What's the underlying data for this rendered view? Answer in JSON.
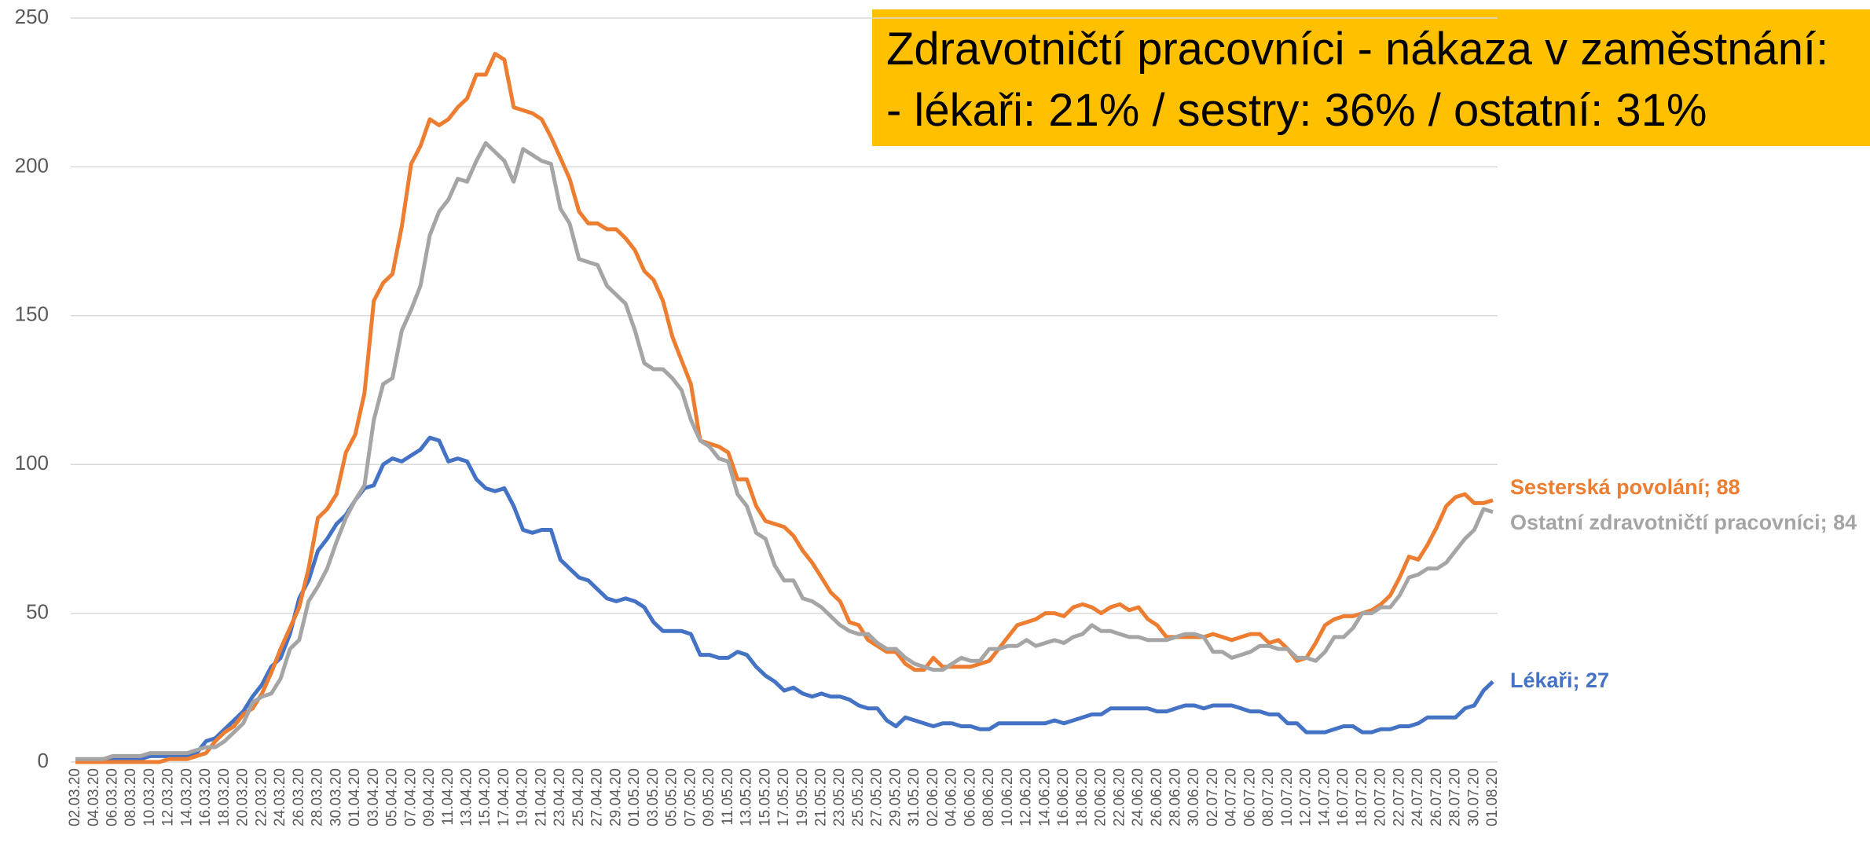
{
  "chart_data": {
    "type": "line",
    "annotations": [
      "Zdravotničtí pracovníci - nákaza v zaměstnání:",
      "- lékaři: 21% / sestry: 36% / ostatní: 31%"
    ],
    "categories": [
      "02.03.20",
      null,
      "04.03.20",
      null,
      "06.03.20",
      null,
      "08.03.20",
      null,
      "10.03.20",
      null,
      "12.03.20",
      null,
      "14.03.20",
      null,
      "16.03.20",
      null,
      "18.03.20",
      null,
      "20.03.20",
      null,
      "22.03.20",
      null,
      "24.03.20",
      null,
      "26.03.20",
      null,
      "28.03.20",
      null,
      "30.03.20",
      null,
      "01.04.20",
      null,
      "03.04.20",
      null,
      "05.04.20",
      null,
      "07.04.20",
      null,
      "09.04.20",
      null,
      "11.04.20",
      null,
      "13.04.20",
      null,
      "15.04.20",
      null,
      "17.04.20",
      null,
      "19.04.20",
      null,
      "21.04.20",
      null,
      "23.04.20",
      null,
      "25.04.20",
      null,
      "27.04.20",
      null,
      "29.04.20",
      null,
      "01.05.20",
      null,
      "03.05.20",
      null,
      "05.05.20",
      null,
      "07.05.20",
      null,
      "09.05.20",
      null,
      "11.05.20",
      null,
      "13.05.20",
      null,
      "15.05.20",
      null,
      "17.05.20",
      null,
      "19.05.20",
      null,
      "21.05.20",
      null,
      "23.05.20",
      null,
      "25.05.20",
      null,
      "27.05.20",
      null,
      "29.05.20",
      null,
      "31.05.20",
      null,
      "02.06.20",
      null,
      "04.06.20",
      null,
      "06.06.20",
      null,
      "08.06.20",
      null,
      "10.06.20",
      null,
      "12.06.20",
      null,
      "14.06.20",
      null,
      "16.06.20",
      null,
      "18.06.20",
      null,
      "20.06.20",
      null,
      "22.06.20",
      null,
      "24.06.20",
      null,
      "26.06.20",
      null,
      "28.06.20",
      null,
      "30.06.20",
      null,
      "02.07.20",
      null,
      "04.07.20",
      null,
      "06.07.20",
      null,
      "08.07.20",
      null,
      "10.07.20",
      null,
      "12.07.20",
      null,
      "14.07.20",
      null,
      "16.07.20",
      null,
      "18.07.20",
      null,
      "20.07.20",
      null,
      "22.07.20",
      null,
      "24.07.20",
      null,
      "26.07.20",
      null,
      "28.07.20",
      null,
      "30.07.20",
      null,
      "01.08.20"
    ],
    "series": [
      {
        "name": "Lékaři",
        "label": "Lékaři; 27",
        "color": "#4472c4",
        "values": [
          0,
          0,
          0,
          1,
          1,
          1,
          1,
          1,
          2,
          2,
          2,
          2,
          2,
          3,
          7,
          8,
          11,
          14,
          17,
          22,
          26,
          32,
          35,
          43,
          55,
          61,
          71,
          75,
          80,
          83,
          88,
          92,
          93,
          100,
          102,
          101,
          103,
          105,
          109,
          108,
          101,
          102,
          101,
          95,
          92,
          91,
          92,
          86,
          78,
          77,
          78,
          78,
          68,
          65,
          62,
          61,
          58,
          55,
          54,
          55,
          54,
          52,
          47,
          44,
          44,
          44,
          43,
          36,
          36,
          35,
          35,
          37,
          36,
          32,
          29,
          27,
          24,
          25,
          23,
          22,
          23,
          22,
          22,
          21,
          19,
          18,
          18,
          14,
          12,
          15,
          14,
          13,
          12,
          13,
          13,
          12,
          12,
          11,
          11,
          13,
          13,
          13,
          13,
          13,
          13,
          14,
          13,
          14,
          15,
          16,
          16,
          18,
          18,
          18,
          18,
          18,
          17,
          17,
          18,
          19,
          19,
          18,
          19,
          19,
          19,
          18,
          17,
          17,
          16,
          16,
          13,
          13,
          10,
          10,
          10,
          11,
          12,
          12,
          10,
          10,
          11,
          11,
          12,
          12,
          13,
          15,
          15,
          15,
          15,
          18,
          19,
          24,
          27
        ]
      },
      {
        "name": "Sesterská povolání",
        "label": "Sesterská povolání; 88",
        "color": "#ed7d31",
        "values": [
          0,
          0,
          0,
          0,
          0,
          0,
          0,
          0,
          0,
          0,
          1,
          1,
          1,
          2,
          3,
          7,
          10,
          12,
          16,
          18,
          23,
          30,
          38,
          45,
          52,
          65,
          82,
          85,
          90,
          104,
          110,
          124,
          155,
          161,
          164,
          180,
          201,
          207,
          216,
          214,
          216,
          220,
          223,
          231,
          231,
          238,
          236,
          220,
          219,
          218,
          216,
          210,
          203,
          196,
          185,
          181,
          181,
          179,
          179,
          176,
          172,
          165,
          162,
          155,
          143,
          135,
          127,
          108,
          107,
          106,
          104,
          95,
          95,
          86,
          81,
          80,
          79,
          76,
          71,
          67,
          62,
          57,
          54,
          47,
          46,
          41,
          39,
          37,
          37,
          33,
          31,
          31,
          35,
          32,
          32,
          32,
          32,
          33,
          34,
          38,
          42,
          46,
          47,
          48,
          50,
          50,
          49,
          52,
          53,
          52,
          50,
          52,
          53,
          51,
          52,
          48,
          46,
          42,
          42,
          42,
          42,
          42,
          43,
          42,
          41,
          42,
          43,
          43,
          40,
          41,
          38,
          34,
          35,
          40,
          46,
          48,
          49,
          49,
          50,
          51,
          53,
          56,
          62,
          69,
          68,
          73,
          79,
          86,
          89,
          90,
          87,
          87,
          88
        ]
      },
      {
        "name": "Ostatní zdravotničtí pracovníci",
        "label": "Ostatní zdravotničtí pracovníci; 84",
        "color": "#a5a5a5",
        "values": [
          1,
          1,
          1,
          1,
          2,
          2,
          2,
          2,
          3,
          3,
          3,
          3,
          3,
          4,
          5,
          5,
          7,
          10,
          13,
          20,
          22,
          23,
          28,
          38,
          41,
          54,
          59,
          65,
          74,
          82,
          88,
          93,
          115,
          127,
          129,
          145,
          152,
          160,
          177,
          185,
          189,
          196,
          195,
          202,
          208,
          205,
          202,
          195,
          206,
          204,
          202,
          201,
          186,
          181,
          169,
          168,
          167,
          160,
          157,
          154,
          145,
          134,
          132,
          132,
          129,
          125,
          115,
          108,
          106,
          102,
          101,
          90,
          86,
          77,
          75,
          66,
          61,
          61,
          55,
          54,
          52,
          49,
          46,
          44,
          43,
          43,
          40,
          38,
          38,
          35,
          33,
          32,
          31,
          31,
          33,
          35,
          34,
          34,
          38,
          38,
          39,
          39,
          41,
          39,
          40,
          41,
          40,
          42,
          43,
          46,
          44,
          44,
          43,
          42,
          42,
          41,
          41,
          41,
          42,
          43,
          43,
          42,
          37,
          37,
          35,
          36,
          37,
          39,
          39,
          38,
          38,
          35,
          35,
          34,
          37,
          42,
          42,
          45,
          50,
          50,
          52,
          52,
          56,
          62,
          63,
          65,
          65,
          67,
          71,
          75,
          78,
          85,
          84
        ]
      }
    ],
    "ylim": [
      0,
      250
    ],
    "yticks": [
      0,
      50,
      100,
      150,
      200,
      250
    ],
    "grid": true,
    "annotation_color": "#ffc000"
  }
}
